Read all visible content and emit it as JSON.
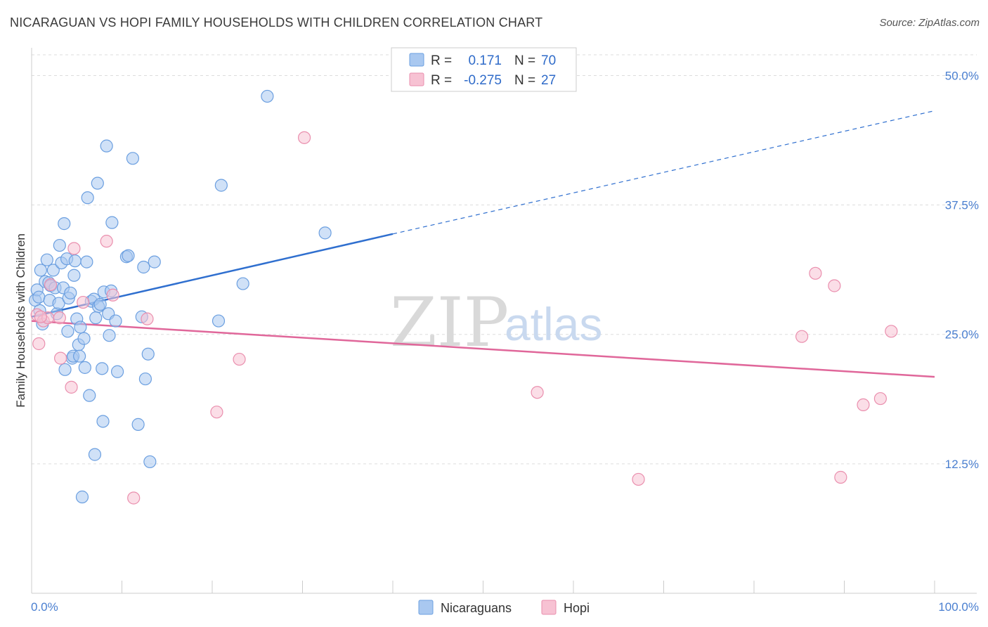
{
  "header": {
    "title": "NICARAGUAN VS HOPI FAMILY HOUSEHOLDS WITH CHILDREN CORRELATION CHART",
    "source": "Source: ZipAtlas.com"
  },
  "watermark": {
    "zip": "ZIP",
    "atlas": "atlas"
  },
  "colors": {
    "blue_fill": "#a9c8f0",
    "blue_stroke": "#6b9fe0",
    "blue_line": "#2f6fcf",
    "pink_fill": "#f7c2d3",
    "pink_stroke": "#ea8fae",
    "pink_line": "#e0679a",
    "tick_text": "#4a7fd0",
    "grid": "#dddddd"
  },
  "legend": {
    "rows": [
      {
        "r_label": "R =",
        "r_value": "0.171",
        "n_label": "N =",
        "n_value": "70"
      },
      {
        "r_label": "R =",
        "r_value": "-0.275",
        "n_label": "N =",
        "n_value": "27"
      }
    ]
  },
  "bottom_legend": {
    "items": [
      "Nicaraguans",
      "Hopi"
    ]
  },
  "chart_data": {
    "type": "scatter",
    "title": "NICARAGUAN VS HOPI FAMILY HOUSEHOLDS WITH CHILDREN CORRELATION CHART",
    "xlabel": "",
    "ylabel": "Family Households with Children",
    "xlim": [
      0,
      100
    ],
    "ylim": [
      0,
      52
    ],
    "x_tick_labels": [
      "0.0%",
      "100.0%"
    ],
    "y_ticks": [
      12.5,
      25.0,
      37.5,
      50.0
    ],
    "y_tick_labels": [
      "12.5%",
      "25.0%",
      "37.5%",
      "50.0%"
    ],
    "grid": true,
    "legend_position": "top-center",
    "series": [
      {
        "name": "Nicaraguans",
        "r": 0.171,
        "n": 70,
        "trend": {
          "x": [
            0,
            40
          ],
          "y": [
            26.7,
            34.7
          ],
          "dashed_extension": {
            "x": [
              40,
              100
            ],
            "y": [
              34.7,
              46.6
            ]
          }
        },
        "points": [
          [
            0.4,
            28.3
          ],
          [
            0.6,
            29.3
          ],
          [
            0.8,
            28.6
          ],
          [
            0.9,
            27.3
          ],
          [
            1.0,
            31.2
          ],
          [
            1.2,
            26.0
          ],
          [
            1.5,
            30.1
          ],
          [
            1.7,
            32.2
          ],
          [
            1.9,
            30.0
          ],
          [
            2.0,
            28.3
          ],
          [
            2.1,
            29.7
          ],
          [
            2.4,
            31.2
          ],
          [
            2.6,
            29.5
          ],
          [
            2.8,
            27.0
          ],
          [
            3.0,
            28.0
          ],
          [
            3.1,
            33.6
          ],
          [
            3.3,
            31.9
          ],
          [
            3.5,
            29.5
          ],
          [
            3.6,
            35.7
          ],
          [
            3.7,
            21.6
          ],
          [
            3.9,
            32.3
          ],
          [
            4.0,
            25.3
          ],
          [
            4.1,
            28.5
          ],
          [
            4.3,
            29.0
          ],
          [
            4.5,
            22.7
          ],
          [
            4.6,
            22.9
          ],
          [
            4.7,
            30.7
          ],
          [
            4.8,
            32.1
          ],
          [
            5.0,
            26.5
          ],
          [
            5.2,
            24.0
          ],
          [
            5.3,
            22.9
          ],
          [
            5.4,
            25.7
          ],
          [
            5.6,
            9.3
          ],
          [
            5.8,
            24.6
          ],
          [
            5.9,
            21.8
          ],
          [
            6.1,
            32.0
          ],
          [
            6.2,
            38.2
          ],
          [
            6.4,
            19.1
          ],
          [
            6.6,
            28.2
          ],
          [
            6.9,
            28.4
          ],
          [
            7.0,
            13.4
          ],
          [
            7.1,
            26.6
          ],
          [
            7.3,
            39.6
          ],
          [
            7.4,
            27.7
          ],
          [
            7.6,
            27.9
          ],
          [
            7.8,
            21.7
          ],
          [
            7.9,
            16.6
          ],
          [
            8.0,
            29.1
          ],
          [
            8.3,
            43.2
          ],
          [
            8.5,
            27.0
          ],
          [
            8.6,
            24.9
          ],
          [
            8.8,
            29.2
          ],
          [
            8.9,
            35.8
          ],
          [
            9.3,
            26.3
          ],
          [
            9.5,
            21.4
          ],
          [
            10.5,
            32.5
          ],
          [
            10.7,
            32.6
          ],
          [
            11.2,
            42.0
          ],
          [
            11.8,
            16.3
          ],
          [
            12.2,
            26.7
          ],
          [
            12.4,
            31.5
          ],
          [
            12.6,
            20.7
          ],
          [
            12.9,
            23.1
          ],
          [
            13.1,
            12.7
          ],
          [
            13.6,
            32.0
          ],
          [
            20.7,
            26.3
          ],
          [
            21.0,
            39.4
          ],
          [
            23.4,
            29.9
          ],
          [
            26.1,
            48.0
          ],
          [
            32.5,
            34.8
          ]
        ]
      },
      {
        "name": "Hopi",
        "r": -0.275,
        "n": 27,
        "trend": {
          "x": [
            0,
            100
          ],
          "y": [
            26.3,
            20.9
          ]
        },
        "points": [
          [
            0.6,
            26.9
          ],
          [
            0.8,
            24.1
          ],
          [
            1.3,
            26.3
          ],
          [
            1.8,
            26.6
          ],
          [
            2.1,
            29.8
          ],
          [
            3.1,
            26.6
          ],
          [
            3.2,
            22.7
          ],
          [
            4.4,
            19.9
          ],
          [
            4.7,
            33.3
          ],
          [
            5.7,
            28.1
          ],
          [
            8.3,
            34.0
          ],
          [
            9.0,
            28.8
          ],
          [
            11.3,
            9.2
          ],
          [
            12.8,
            26.5
          ],
          [
            20.5,
            17.5
          ],
          [
            23.0,
            22.6
          ],
          [
            30.2,
            44.0
          ],
          [
            56.0,
            19.4
          ],
          [
            67.2,
            11.0
          ],
          [
            85.3,
            24.8
          ],
          [
            86.8,
            30.9
          ],
          [
            88.9,
            29.7
          ],
          [
            89.6,
            11.2
          ],
          [
            92.1,
            18.2
          ],
          [
            94.0,
            18.8
          ],
          [
            95.2,
            25.3
          ],
          [
            1.0,
            26.7
          ]
        ]
      }
    ]
  }
}
